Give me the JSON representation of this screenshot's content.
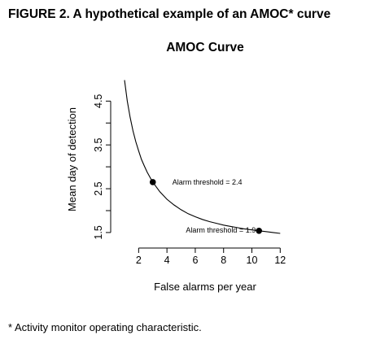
{
  "figure_title": "FIGURE 2. A hypothetical example of an AMOC* curve",
  "footnote": "* Activity monitor operating characteristic.",
  "chart_data": {
    "type": "line",
    "title": "AMOC Curve",
    "xlabel": "False alarms per year",
    "ylabel": "Mean day of detection",
    "xlim": [
      0.6,
      12.5
    ],
    "ylim": [
      1.35,
      5.1
    ],
    "x_ticks": [
      2,
      4,
      6,
      8,
      10,
      12
    ],
    "x_tick_labels": [
      "2",
      "4",
      "6",
      "8",
      "10",
      "12"
    ],
    "y_ticks": [
      1.5,
      2.5,
      3.5,
      4.5
    ],
    "y_tick_labels": [
      "1.5",
      "2.5",
      "3.5",
      "4.5"
    ],
    "y_minor_ticks": [
      2.0,
      3.0,
      4.0
    ],
    "grid": false,
    "line_color": "#000000",
    "series": [
      {
        "x": [
          1.0,
          1.2,
          1.4,
          1.6,
          1.8,
          2.0,
          2.2,
          2.4,
          2.6,
          2.8,
          3.0,
          3.5,
          4.0,
          4.5,
          5.0,
          5.5,
          6.0,
          6.5,
          7.0,
          7.5,
          8.0,
          8.5,
          9.0,
          9.5,
          10.0,
          10.5,
          11.0,
          11.5,
          12.0
        ],
        "y": [
          4.98,
          4.5,
          4.13,
          3.82,
          3.57,
          3.36,
          3.17,
          3.02,
          2.88,
          2.76,
          2.65,
          2.43,
          2.26,
          2.13,
          2.02,
          1.93,
          1.86,
          1.8,
          1.75,
          1.71,
          1.67,
          1.64,
          1.61,
          1.58,
          1.56,
          1.54,
          1.52,
          1.5,
          1.48
        ]
      }
    ],
    "annotations": [
      {
        "label": "Alarm threshold = 2.4",
        "x": 3.0,
        "y": 2.65
      },
      {
        "label": "Alarm threshold = 1.9",
        "x": 10.5,
        "y": 1.54
      }
    ]
  }
}
